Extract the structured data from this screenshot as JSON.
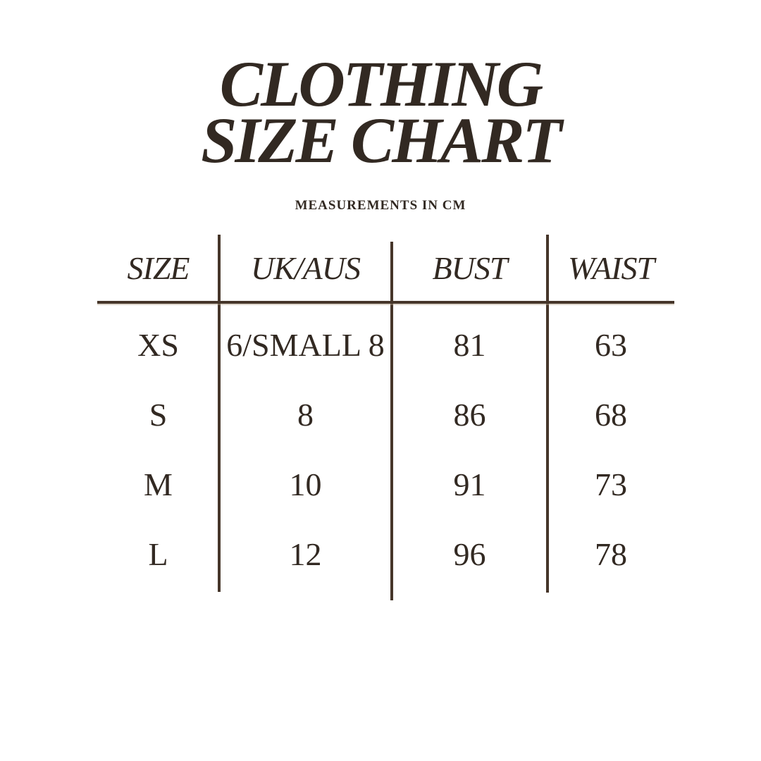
{
  "page": {
    "background_color": "#ffffff",
    "text_color": "#322922",
    "line_color": "#46362a"
  },
  "title": {
    "line1": "CLOTHING",
    "line2": "SIZE CHART"
  },
  "subtitle": "MEASUREMENTS IN CM",
  "chart_data": {
    "type": "table",
    "title": "CLOTHING SIZE CHART",
    "subtitle": "MEASUREMENTS IN CM",
    "units": "cm",
    "columns": [
      "SIZE",
      "UK/AUS",
      "BUST",
      "WAIST"
    ],
    "rows": [
      [
        "XS",
        "6/SMALL 8",
        "81",
        "63"
      ],
      [
        "S",
        "8",
        "86",
        "68"
      ],
      [
        "M",
        "10",
        "91",
        "73"
      ],
      [
        "L",
        "12",
        "96",
        "78"
      ]
    ]
  }
}
